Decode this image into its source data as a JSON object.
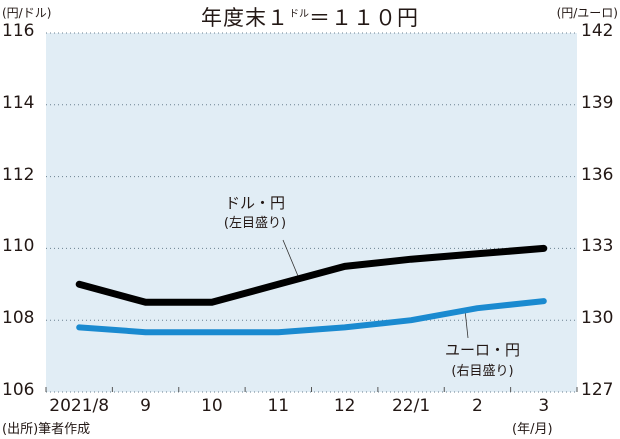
{
  "chart_data": {
    "type": "line",
    "title": "年度末1ドル=110円",
    "title_parts": {
      "main": "年度末１",
      "sup": "ドル",
      "rest": "＝１１０円"
    },
    "xlabel": "(年/月)",
    "ylabel_left": "(円/ドル)",
    "ylabel_right": "(円/ユーロ)",
    "categories": [
      "2021/8",
      "9",
      "10",
      "11",
      "12",
      "22/1",
      "2",
      "3"
    ],
    "y_left": {
      "ticks": [
        "116",
        "114",
        "112",
        "110",
        "108",
        "106"
      ],
      "range": [
        106,
        116
      ]
    },
    "y_right": {
      "ticks": [
        "142",
        "139",
        "136",
        "133",
        "130",
        "127"
      ],
      "range": [
        127,
        142
      ]
    },
    "series": [
      {
        "name": "ドル・円",
        "axis": "left",
        "note": "(左目盛り)",
        "color": "#000000",
        "values": [
          109.0,
          108.5,
          108.5,
          109.0,
          109.5,
          109.7,
          109.85,
          110.0
        ]
      },
      {
        "name": "ユーロ・円",
        "axis": "right",
        "note": "(右目盛り)",
        "color": "#1a8ad0",
        "values": [
          129.7,
          129.5,
          129.5,
          129.5,
          129.7,
          130.0,
          130.5,
          130.8
        ]
      }
    ],
    "grid": true,
    "background": "#e1edf5",
    "source": "(出所)筆者作成"
  }
}
